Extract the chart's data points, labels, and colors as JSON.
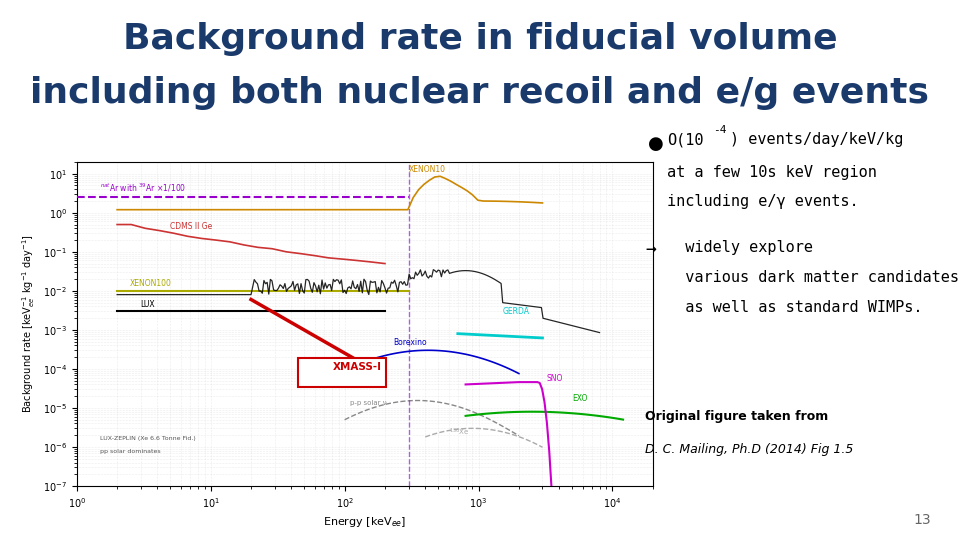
{
  "title_line1": "Background rate in fiducial volume",
  "title_line2": "including both nuclear recoil and e/g events",
  "title_color": "#1a3a6b",
  "title_fontsize": 26,
  "bg_color": "#ffffff",
  "bullet1_sup": "-4",
  "ref_bold": "Original figure taken from",
  "ref_italic": "D. C. Mailing, Ph.D (2014) Fig 1.5",
  "page_num": "13",
  "xmass_box_color": "#cc0000",
  "xenon100_color": "#aaaa00",
  "cdms_color": "#cc3333",
  "xenon10_color": "#cc8800",
  "lux_color": "#000000",
  "nat_ar_color": "#9900cc",
  "borexino_color": "#0000cc",
  "gerda_color": "#00cccc",
  "sno_color": "#cc00cc",
  "exo_color": "#00aa00",
  "pp_solar_color": "#888888",
  "xe136_color": "#aaaaaa"
}
